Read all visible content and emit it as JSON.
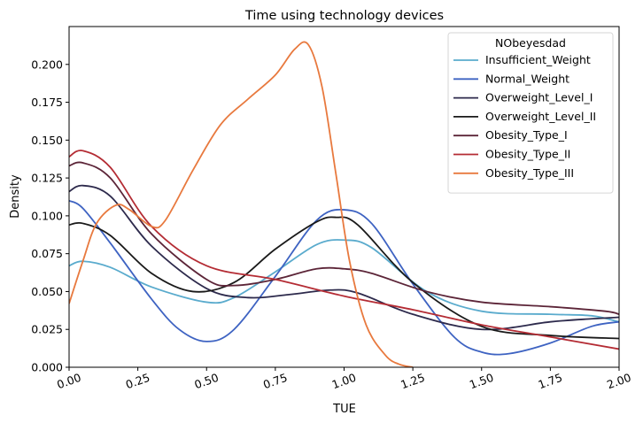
{
  "chart_data": {
    "type": "line",
    "title": "Time using technology devices",
    "xlabel": "TUE",
    "ylabel": "Density",
    "xlim": [
      0,
      2
    ],
    "ylim": [
      0,
      0.225
    ],
    "x_ticks": [
      "0.00",
      "0.25",
      "0.50",
      "0.75",
      "1.00",
      "1.25",
      "1.50",
      "1.75",
      "2.00"
    ],
    "x_tick_values": [
      0,
      0.25,
      0.5,
      0.75,
      1.0,
      1.25,
      1.5,
      1.75,
      2.0
    ],
    "y_ticks": [
      "0.000",
      "0.025",
      "0.050",
      "0.075",
      "0.100",
      "0.125",
      "0.150",
      "0.175",
      "0.200"
    ],
    "y_tick_values": [
      0,
      0.025,
      0.05,
      0.075,
      0.1,
      0.125,
      0.15,
      0.175,
      0.2
    ],
    "x_tick_rotation": "20deg",
    "grid": false,
    "legend": {
      "title": "NObeyesdad",
      "placement": "upper-right"
    },
    "series": [
      {
        "name": "Insufficient_Weight",
        "color": "#5aabcd",
        "x": [
          0,
          0.05,
          0.15,
          0.3,
          0.5,
          0.6,
          0.75,
          0.9,
          1.0,
          1.1,
          1.3,
          1.5,
          1.75,
          1.9,
          2.0
        ],
        "y": [
          0.067,
          0.07,
          0.066,
          0.053,
          0.043,
          0.046,
          0.063,
          0.081,
          0.084,
          0.079,
          0.05,
          0.037,
          0.035,
          0.034,
          0.03
        ]
      },
      {
        "name": "Normal_Weight",
        "color": "#3e63c2",
        "x": [
          0,
          0.05,
          0.15,
          0.3,
          0.4,
          0.5,
          0.6,
          0.75,
          0.9,
          1.0,
          1.1,
          1.25,
          1.4,
          1.5,
          1.6,
          1.75,
          1.9,
          2.0
        ],
        "y": [
          0.11,
          0.105,
          0.082,
          0.045,
          0.025,
          0.017,
          0.025,
          0.06,
          0.097,
          0.104,
          0.095,
          0.055,
          0.02,
          0.01,
          0.009,
          0.016,
          0.027,
          0.03
        ]
      },
      {
        "name": "Overweight_Level_I",
        "color": "#2d2a4c",
        "x": [
          0,
          0.05,
          0.15,
          0.3,
          0.5,
          0.65,
          0.8,
          0.95,
          1.05,
          1.25,
          1.5,
          1.75,
          1.9,
          2.0
        ],
        "y": [
          0.116,
          0.12,
          0.113,
          0.08,
          0.052,
          0.046,
          0.048,
          0.051,
          0.049,
          0.035,
          0.025,
          0.03,
          0.032,
          0.033
        ]
      },
      {
        "name": "Overweight_Level_II",
        "color": "#1a1a1a",
        "x": [
          0,
          0.05,
          0.15,
          0.3,
          0.45,
          0.6,
          0.75,
          0.9,
          0.97,
          1.05,
          1.25,
          1.5,
          1.75,
          2.0
        ],
        "y": [
          0.094,
          0.095,
          0.087,
          0.062,
          0.05,
          0.056,
          0.078,
          0.096,
          0.099,
          0.094,
          0.056,
          0.027,
          0.021,
          0.019
        ]
      },
      {
        "name": "Obesity_Type_I",
        "color": "#5c2538",
        "x": [
          0,
          0.05,
          0.15,
          0.3,
          0.5,
          0.6,
          0.75,
          0.9,
          1.0,
          1.1,
          1.3,
          1.5,
          1.75,
          1.95,
          2.0
        ],
        "y": [
          0.133,
          0.135,
          0.125,
          0.088,
          0.058,
          0.054,
          0.058,
          0.065,
          0.065,
          0.062,
          0.05,
          0.043,
          0.04,
          0.037,
          0.035
        ]
      },
      {
        "name": "Obesity_Type_II",
        "color": "#b42c34",
        "x": [
          0,
          0.05,
          0.15,
          0.3,
          0.5,
          0.75,
          1.0,
          1.25,
          1.5,
          1.75,
          2.0
        ],
        "y": [
          0.139,
          0.143,
          0.132,
          0.093,
          0.067,
          0.058,
          0.047,
          0.038,
          0.028,
          0.02,
          0.012
        ]
      },
      {
        "name": "Obesity_Type_III",
        "color": "#e8793e",
        "x": [
          0,
          0.05,
          0.1,
          0.17,
          0.22,
          0.3,
          0.35,
          0.45,
          0.55,
          0.65,
          0.75,
          0.82,
          0.87,
          0.92,
          0.97,
          1.02,
          1.08,
          1.15,
          1.2,
          1.25
        ],
        "y": [
          0.042,
          0.07,
          0.095,
          0.107,
          0.104,
          0.093,
          0.097,
          0.13,
          0.16,
          0.177,
          0.193,
          0.21,
          0.213,
          0.185,
          0.128,
          0.07,
          0.028,
          0.008,
          0.002,
          0.0
        ]
      }
    ]
  }
}
